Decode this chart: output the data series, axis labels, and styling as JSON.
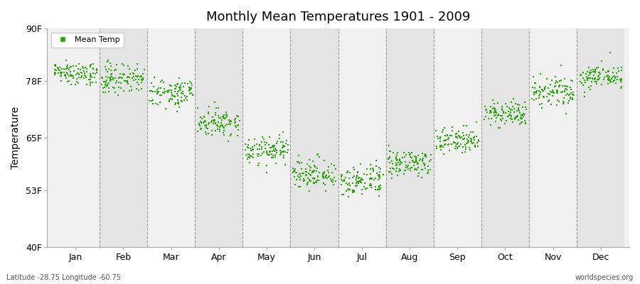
{
  "title": "Monthly Mean Temperatures 1901 - 2009",
  "ylabel": "Temperature",
  "ytick_labels": [
    "40F",
    "53F",
    "65F",
    "78F",
    "90F"
  ],
  "ytick_values": [
    40,
    53,
    65,
    78,
    90
  ],
  "ylim": [
    40,
    90
  ],
  "months": [
    "Jan",
    "Feb",
    "Mar",
    "Apr",
    "May",
    "Jun",
    "Jul",
    "Aug",
    "Sep",
    "Oct",
    "Nov",
    "Dec"
  ],
  "dot_color": "#22aa00",
  "bg_color": "#ffffff",
  "plot_bg_light": "#f0f0f0",
  "plot_bg_dark": "#e4e4e4",
  "footer_left": "Latitude -28.75 Longitude -60.75",
  "footer_right": "worldspecies.org",
  "legend_label": "Mean Temp",
  "num_years": 109,
  "mean_temps_by_month": [
    79.5,
    78.5,
    75.5,
    68.5,
    62.0,
    57.0,
    55.5,
    59.0,
    64.5,
    70.5,
    75.5,
    79.0
  ],
  "std_by_month": [
    2.0,
    2.5,
    2.5,
    2.5,
    3.0,
    3.0,
    3.0,
    2.5,
    2.5,
    2.5,
    2.5,
    2.0
  ]
}
